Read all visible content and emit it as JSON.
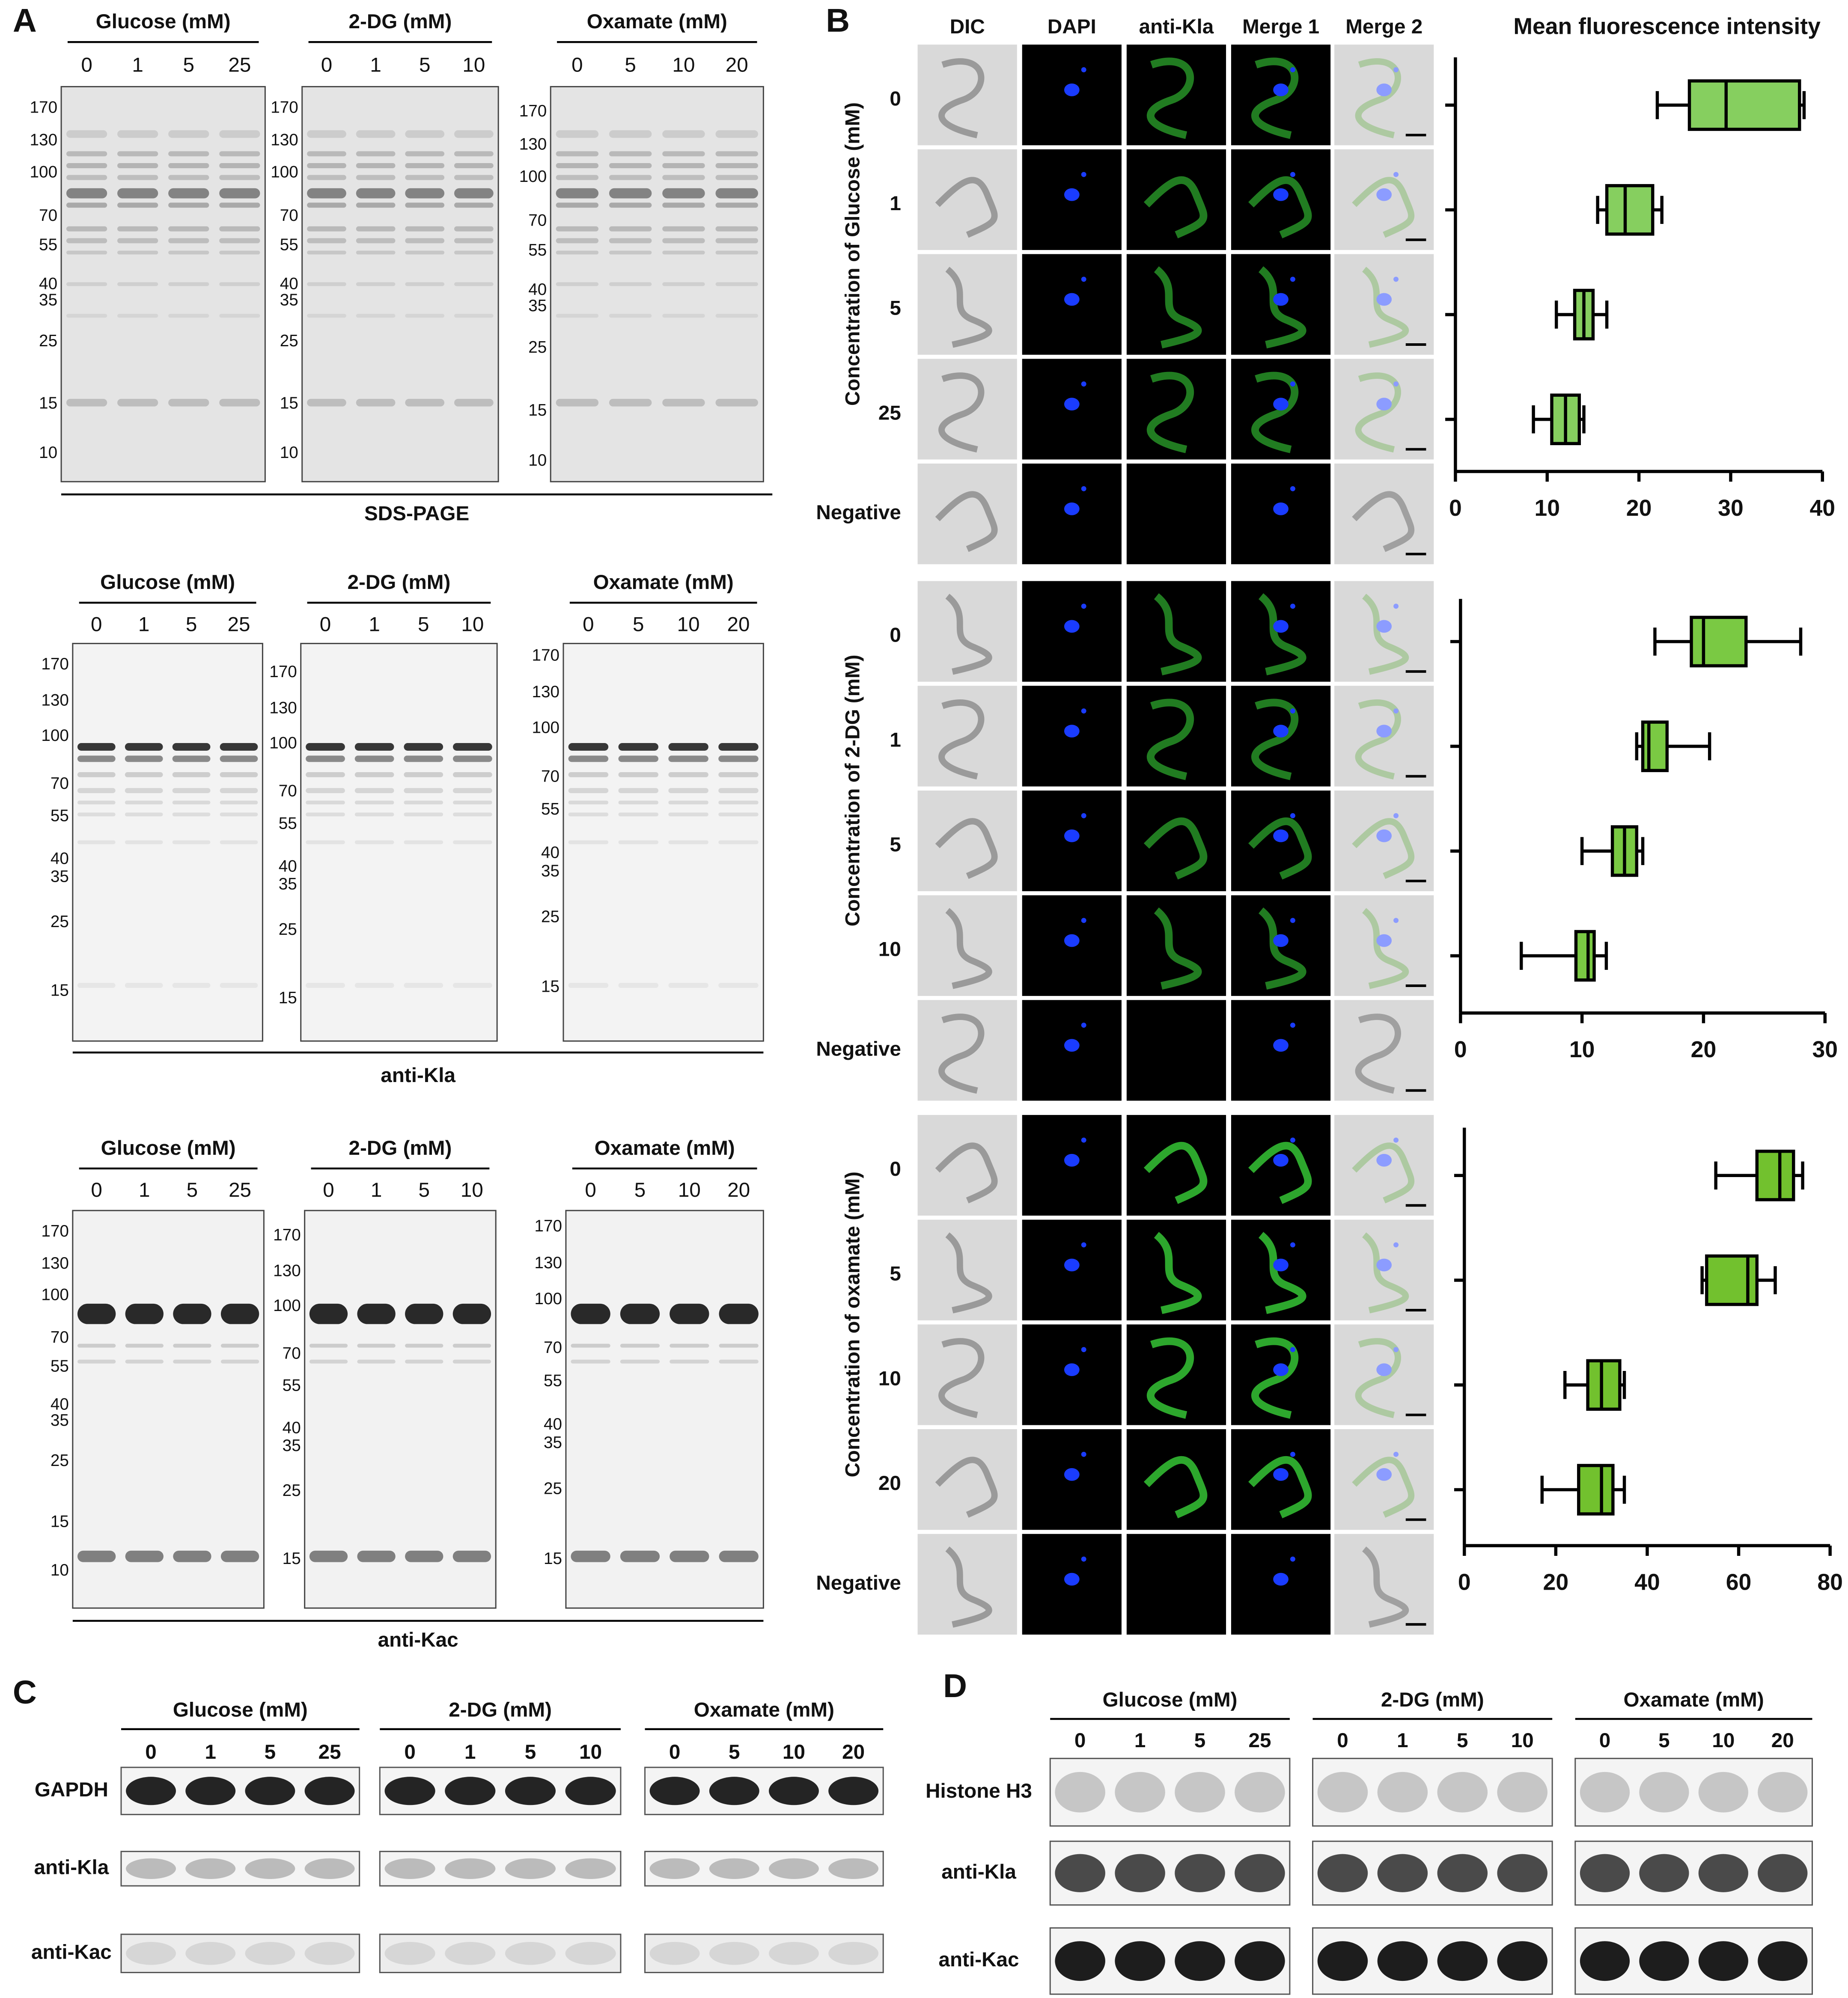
{
  "panel_a": {
    "label": "A",
    "gels": [
      {
        "title": "SDS-PAGE",
        "groups": [
          {
            "name": "Glucose (mM)",
            "lanes": [
              "0",
              "1",
              "5",
              "25"
            ],
            "markers": [
              170,
              130,
              100,
              70,
              55,
              40,
              35,
              25,
              15,
              10
            ]
          },
          {
            "name": "2-DG (mM)",
            "lanes": [
              "0",
              "1",
              "5",
              "10"
            ],
            "markers": [
              170,
              130,
              100,
              70,
              55,
              40,
              35,
              25,
              15,
              10
            ]
          },
          {
            "name": "Oxamate (mM)",
            "lanes": [
              "0",
              "5",
              "10",
              "20"
            ],
            "markers": [
              170,
              130,
              100,
              70,
              55,
              40,
              35,
              25,
              15,
              10
            ]
          }
        ]
      },
      {
        "title": "anti-Kla",
        "groups": [
          {
            "name": "Glucose (mM)",
            "lanes": [
              "0",
              "1",
              "5",
              "25"
            ],
            "markers": [
              170,
              130,
              100,
              70,
              55,
              40,
              35,
              25,
              15
            ]
          },
          {
            "name": "2-DG (mM)",
            "lanes": [
              "0",
              "1",
              "5",
              "10"
            ],
            "markers": [
              170,
              130,
              100,
              70,
              55,
              40,
              35,
              25,
              15
            ]
          },
          {
            "name": "Oxamate (mM)",
            "lanes": [
              "0",
              "5",
              "10",
              "20"
            ],
            "markers": [
              170,
              130,
              100,
              70,
              55,
              40,
              35,
              25,
              15
            ]
          }
        ]
      },
      {
        "title": "anti-Kac",
        "groups": [
          {
            "name": "Glucose (mM)",
            "lanes": [
              "0",
              "1",
              "5",
              "25"
            ],
            "markers": [
              170,
              130,
              100,
              70,
              55,
              40,
              35,
              25,
              15,
              10
            ]
          },
          {
            "name": "2-DG (mM)",
            "lanes": [
              "0",
              "1",
              "5",
              "10"
            ],
            "markers": [
              170,
              130,
              100,
              70,
              55,
              40,
              35,
              25,
              15
            ]
          },
          {
            "name": "Oxamate (mM)",
            "lanes": [
              "0",
              "5",
              "10",
              "20"
            ],
            "markers": [
              170,
              130,
              100,
              70,
              55,
              40,
              35,
              25,
              15
            ]
          }
        ]
      }
    ]
  },
  "panel_b": {
    "label": "B",
    "columns": [
      "DIC",
      "DAPI",
      "anti-Kla",
      "Merge 1",
      "Merge 2"
    ],
    "plot_title": "Mean fluorescence intensity",
    "blocks": [
      {
        "axis_label": "Concentration of Glucose (mM)",
        "rows": [
          "0",
          "1",
          "5",
          "25",
          "Negative"
        ],
        "xlim": [
          0,
          40
        ],
        "xticks": [
          0,
          10,
          20,
          30,
          40
        ],
        "color": "#86cf5f",
        "boxes": [
          {
            "min": 22,
            "q1": 25.5,
            "median": 29.5,
            "q3": 37.5,
            "max": 38
          },
          {
            "min": 15.5,
            "q1": 16.5,
            "median": 18.5,
            "q3": 21.5,
            "max": 22.5
          },
          {
            "min": 11,
            "q1": 13,
            "median": 14,
            "q3": 15,
            "max": 16.5
          },
          {
            "min": 8.5,
            "q1": 10.5,
            "median": 12,
            "q3": 13.5,
            "max": 14
          }
        ]
      },
      {
        "axis_label": "Concentration of 2-DG (mM)",
        "rows": [
          "0",
          "1",
          "5",
          "10",
          "Negative"
        ],
        "xlim": [
          0,
          30
        ],
        "xticks": [
          0,
          10,
          20,
          30
        ],
        "color": "#7ac943",
        "boxes": [
          {
            "min": 16,
            "q1": 19,
            "median": 20,
            "q3": 23.5,
            "max": 28
          },
          {
            "min": 14.5,
            "q1": 15,
            "median": 15.5,
            "q3": 17,
            "max": 20.5
          },
          {
            "min": 10,
            "q1": 12.5,
            "median": 13.5,
            "q3": 14.5,
            "max": 15
          },
          {
            "min": 5,
            "q1": 9.5,
            "median": 10.5,
            "q3": 11,
            "max": 12
          }
        ]
      },
      {
        "axis_label": "Concentration of oxamate (mM)",
        "rows": [
          "0",
          "5",
          "10",
          "20",
          "Negative"
        ],
        "xlim": [
          0,
          80
        ],
        "xticks": [
          0,
          20,
          40,
          60,
          80
        ],
        "color": "#72c12e",
        "boxes": [
          {
            "min": 55,
            "q1": 64,
            "median": 69,
            "q3": 72,
            "max": 74
          },
          {
            "min": 52,
            "q1": 53,
            "median": 62,
            "q3": 64,
            "max": 68
          },
          {
            "min": 22,
            "q1": 27,
            "median": 30,
            "q3": 34,
            "max": 35
          },
          {
            "min": 17,
            "q1": 25,
            "median": 30,
            "q3": 32.5,
            "max": 35
          }
        ]
      }
    ]
  },
  "panel_c": {
    "label": "C",
    "groups": [
      {
        "name": "Glucose (mM)",
        "lanes": [
          "0",
          "1",
          "5",
          "25"
        ]
      },
      {
        "name": "2-DG (mM)",
        "lanes": [
          "0",
          "1",
          "5",
          "10"
        ]
      },
      {
        "name": "Oxamate (mM)",
        "lanes": [
          "0",
          "5",
          "10",
          "20"
        ]
      }
    ],
    "rows": [
      "GAPDH",
      "anti-Kla",
      "anti-Kac"
    ]
  },
  "panel_d": {
    "label": "D",
    "groups": [
      {
        "name": "Glucose (mM)",
        "lanes": [
          "0",
          "1",
          "5",
          "25"
        ]
      },
      {
        "name": "2-DG (mM)",
        "lanes": [
          "0",
          "1",
          "5",
          "10"
        ]
      },
      {
        "name": "Oxamate (mM)",
        "lanes": [
          "0",
          "5",
          "10",
          "20"
        ]
      }
    ],
    "rows": [
      "Histone H3",
      "anti-Kla",
      "anti-Kac"
    ]
  }
}
